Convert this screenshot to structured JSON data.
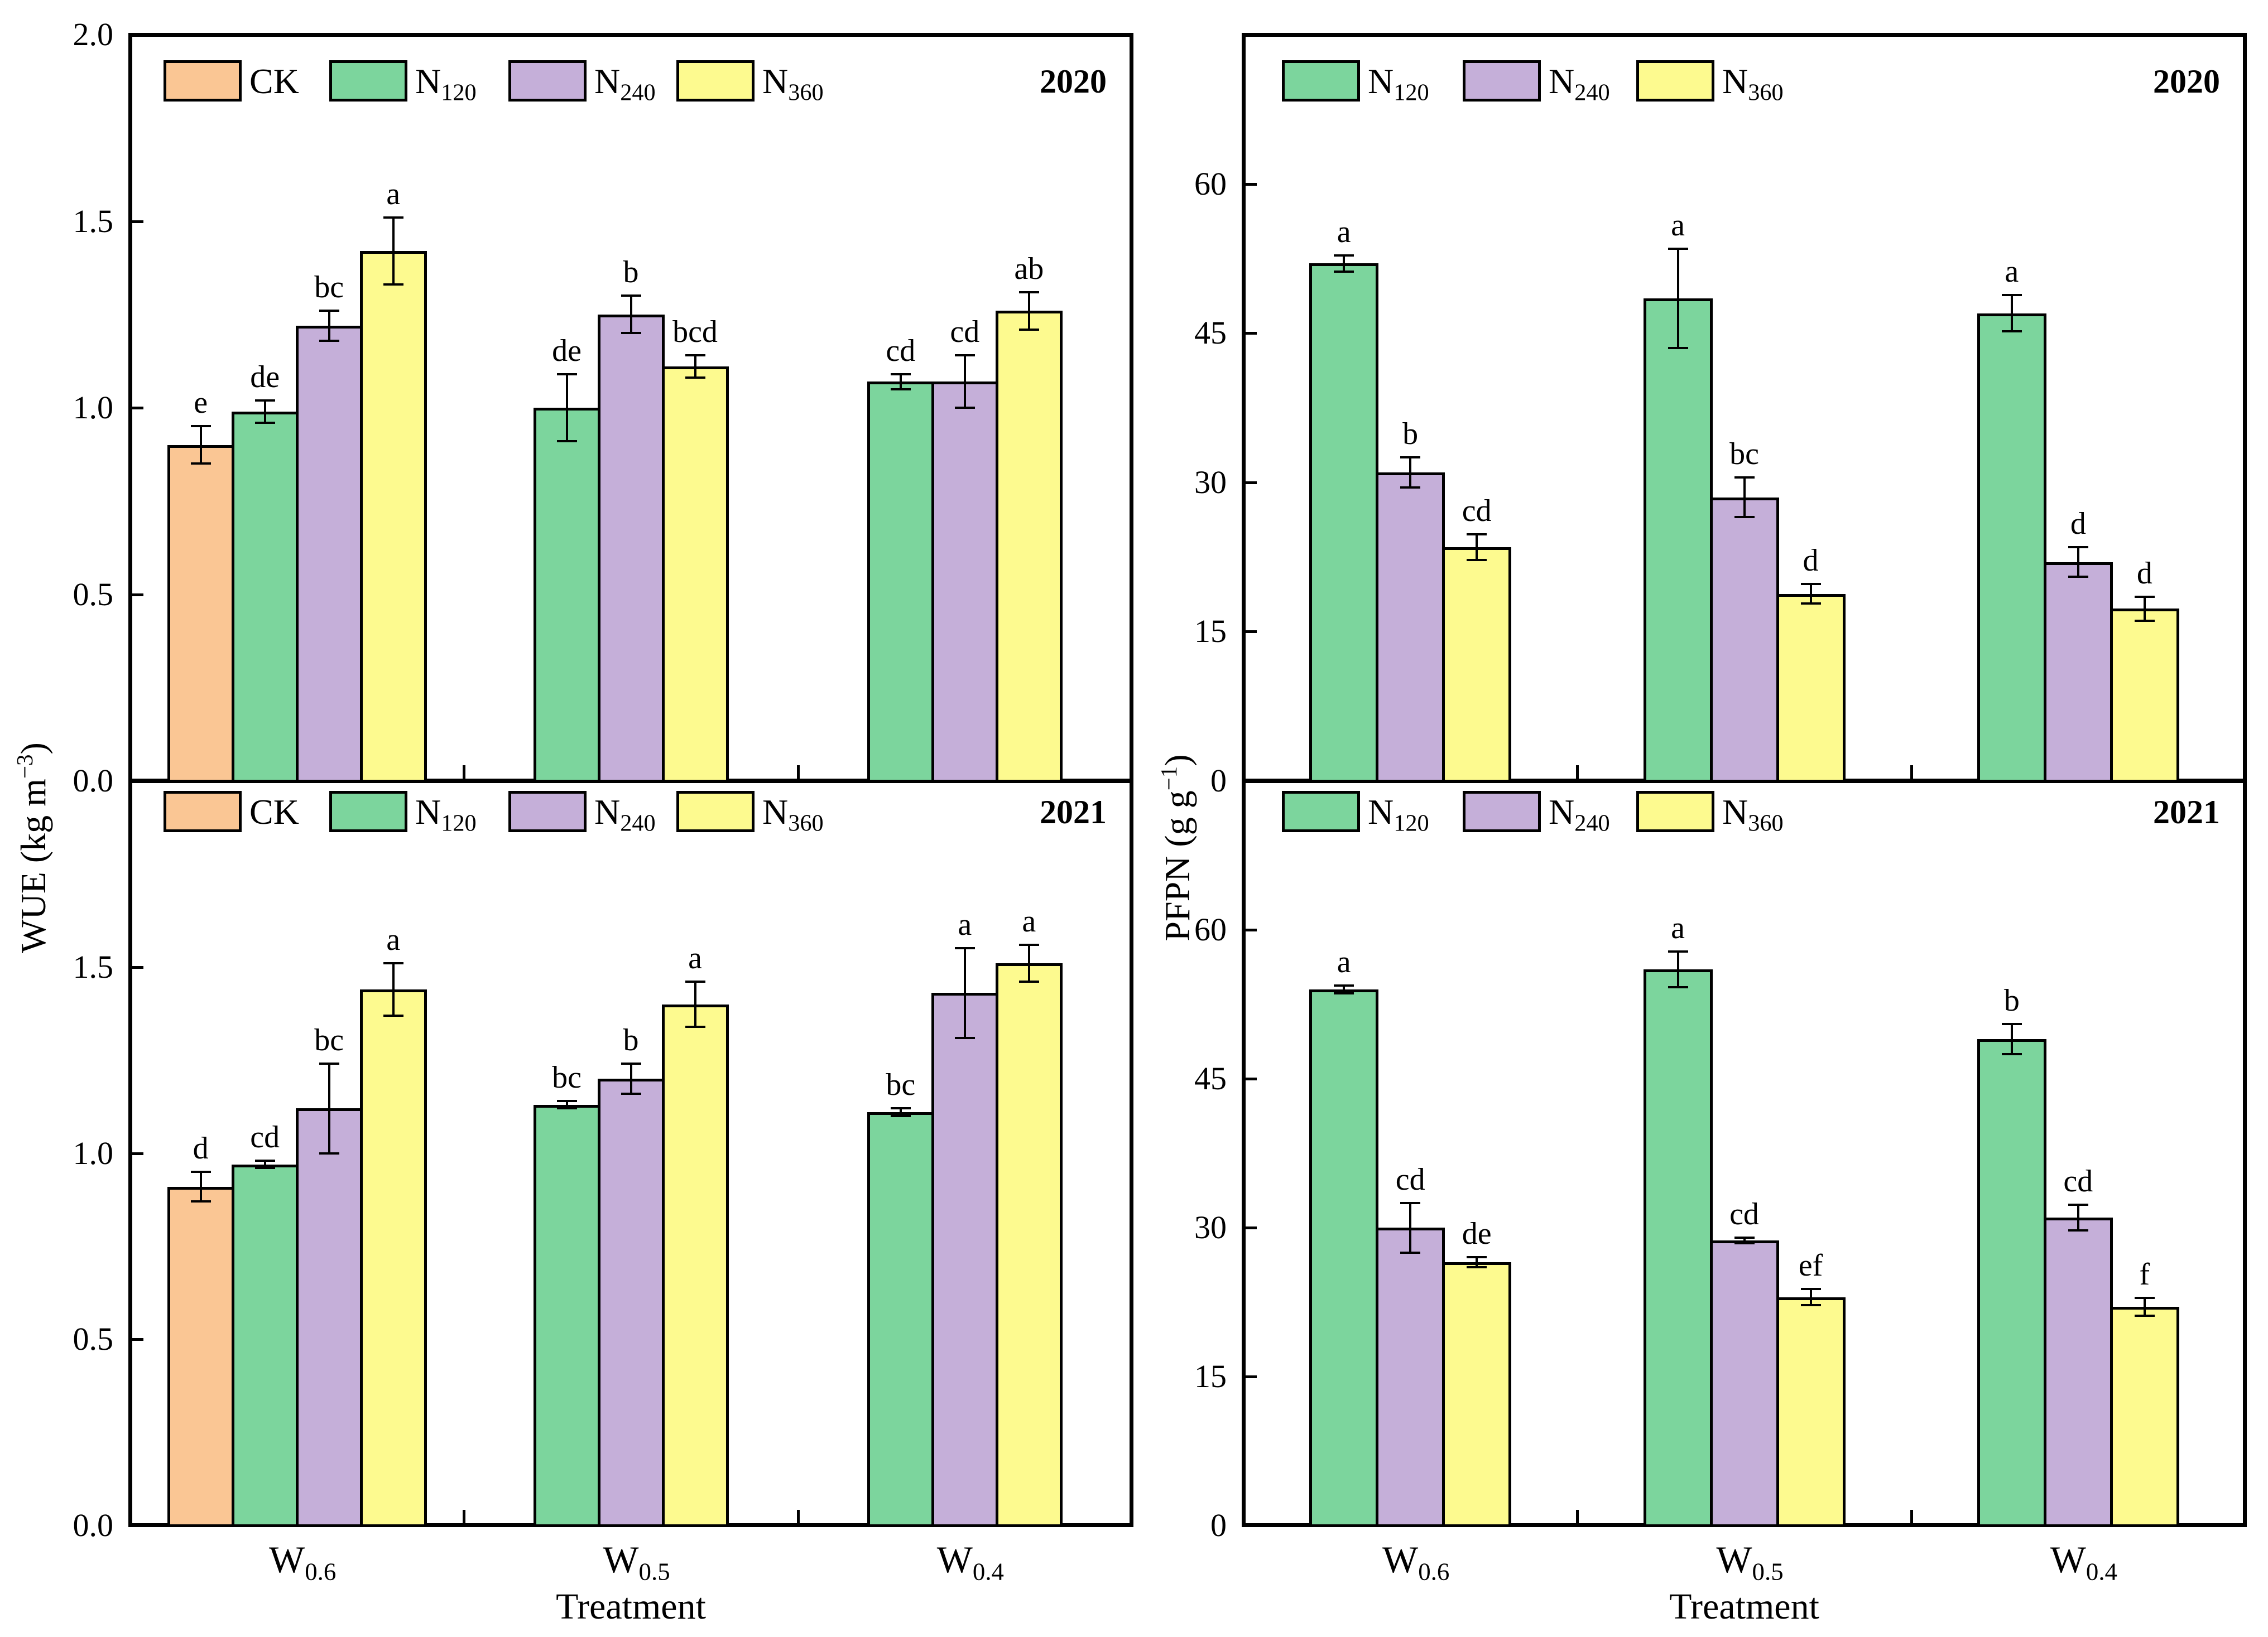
{
  "figure": {
    "x_axis_title": "Treatment",
    "background_color": "#ffffff",
    "line_color": "#000000",
    "columns": [
      {
        "y_axis_title": {
          "pre": "WUE (kg m",
          "sup": "−3",
          "post": ")"
        }
      },
      {
        "y_axis_title": {
          "pre": "PFPN (g g",
          "sup": "−1",
          "post": ")"
        }
      }
    ],
    "categories": [
      {
        "main": "W",
        "sub": "0.6"
      },
      {
        "main": "W",
        "sub": "0.5"
      },
      {
        "main": "W",
        "sub": "0.4"
      }
    ],
    "series": {
      "CK": {
        "main": "CK",
        "sub": "",
        "color": "#FAC694"
      },
      "N120": {
        "main": "N",
        "sub": "120",
        "color": "#7CD59D"
      },
      "N240": {
        "main": "N",
        "sub": "240",
        "color": "#C5AFD9"
      },
      "N360": {
        "main": "N",
        "sub": "360",
        "color": "#FDFA8F"
      }
    }
  },
  "chart_data": [
    {
      "type": "bar",
      "id": "wue-2020",
      "title": "2020",
      "column": 0,
      "row": 0,
      "ylabel": "WUE (kg m-3)",
      "ylim": [
        0,
        2.0
      ],
      "yticks": [
        {
          "v": 2.0,
          "label": "2.0"
        },
        {
          "v": 1.5,
          "label": "1.5"
        },
        {
          "v": 1.0,
          "label": "1.0"
        },
        {
          "v": 0.5,
          "label": "0.5"
        },
        {
          "v": 0.0,
          "label": "0.0"
        }
      ],
      "legend": [
        "CK",
        "N120",
        "N240",
        "N360"
      ],
      "groups": [
        {
          "category": "W0.6",
          "bars": [
            {
              "series": "CK",
              "value": 0.9,
              "err": 0.05,
              "letter": "e"
            },
            {
              "series": "N120",
              "value": 0.99,
              "err": 0.03,
              "letter": "de"
            },
            {
              "series": "N240",
              "value": 1.22,
              "err": 0.04,
              "letter": "bc"
            },
            {
              "series": "N360",
              "value": 1.42,
              "err": 0.09,
              "letter": "a"
            }
          ]
        },
        {
          "category": "W0.5",
          "bars": [
            {
              "series": "N120",
              "value": 1.0,
              "err": 0.09,
              "letter": "de"
            },
            {
              "series": "N240",
              "value": 1.25,
              "err": 0.05,
              "letter": "b"
            },
            {
              "series": "N360",
              "value": 1.11,
              "err": 0.03,
              "letter": "bcd"
            }
          ]
        },
        {
          "category": "W0.4",
          "bars": [
            {
              "series": "N120",
              "value": 1.07,
              "err": 0.02,
              "letter": "cd"
            },
            {
              "series": "N240",
              "value": 1.07,
              "err": 0.07,
              "letter": "cd"
            },
            {
              "series": "N360",
              "value": 1.26,
              "err": 0.05,
              "letter": "ab"
            }
          ]
        }
      ]
    },
    {
      "type": "bar",
      "id": "wue-2021",
      "title": "2021",
      "column": 0,
      "row": 1,
      "ylabel": "WUE (kg m-3)",
      "ylim": [
        0,
        2.0
      ],
      "yticks": [
        {
          "v": 2.0,
          "label": ""
        },
        {
          "v": 1.5,
          "label": "1.5"
        },
        {
          "v": 1.0,
          "label": "1.0"
        },
        {
          "v": 0.5,
          "label": "0.5"
        },
        {
          "v": 0.0,
          "label": "0.0"
        }
      ],
      "legend": [
        "CK",
        "N120",
        "N240",
        "N360"
      ],
      "groups": [
        {
          "category": "W0.6",
          "bars": [
            {
              "series": "CK",
              "value": 0.91,
              "err": 0.04,
              "letter": "d"
            },
            {
              "series": "N120",
              "value": 0.97,
              "err": 0.01,
              "letter": "cd"
            },
            {
              "series": "N240",
              "value": 1.12,
              "err": 0.12,
              "letter": "bc"
            },
            {
              "series": "N360",
              "value": 1.44,
              "err": 0.07,
              "letter": "a"
            }
          ]
        },
        {
          "category": "W0.5",
          "bars": [
            {
              "series": "N120",
              "value": 1.13,
              "err": 0.01,
              "letter": "bc"
            },
            {
              "series": "N240",
              "value": 1.2,
              "err": 0.04,
              "letter": "b"
            },
            {
              "series": "N360",
              "value": 1.4,
              "err": 0.06,
              "letter": "a"
            }
          ]
        },
        {
          "category": "W0.4",
          "bars": [
            {
              "series": "N120",
              "value": 1.11,
              "err": 0.01,
              "letter": "bc"
            },
            {
              "series": "N240",
              "value": 1.43,
              "err": 0.12,
              "letter": "a"
            },
            {
              "series": "N360",
              "value": 1.51,
              "err": 0.05,
              "letter": "a"
            }
          ]
        }
      ]
    },
    {
      "type": "bar",
      "id": "pfpn-2020",
      "title": "2020",
      "column": 1,
      "row": 0,
      "ylabel": "PFPN (g g-1)",
      "ylim": [
        0,
        75
      ],
      "yticks": [
        {
          "v": 75,
          "label": ""
        },
        {
          "v": 60,
          "label": "60"
        },
        {
          "v": 45,
          "label": "45"
        },
        {
          "v": 30,
          "label": "30"
        },
        {
          "v": 15,
          "label": "15"
        },
        {
          "v": 0,
          "label": "0"
        }
      ],
      "legend": [
        "N120",
        "N240",
        "N360"
      ],
      "groups": [
        {
          "category": "W0.6",
          "bars": [
            {
              "series": "N120",
              "value": 52.0,
              "err": 0.8,
              "letter": "a"
            },
            {
              "series": "N240",
              "value": 31.0,
              "err": 1.5,
              "letter": "b"
            },
            {
              "series": "N360",
              "value": 23.5,
              "err": 1.3,
              "letter": "cd"
            }
          ]
        },
        {
          "category": "W0.5",
          "bars": [
            {
              "series": "N120",
              "value": 48.5,
              "err": 5.0,
              "letter": "a"
            },
            {
              "series": "N240",
              "value": 28.5,
              "err": 2.0,
              "letter": "bc"
            },
            {
              "series": "N360",
              "value": 18.8,
              "err": 1.0,
              "letter": "d"
            }
          ]
        },
        {
          "category": "W0.4",
          "bars": [
            {
              "series": "N120",
              "value": 47.0,
              "err": 1.8,
              "letter": "a"
            },
            {
              "series": "N240",
              "value": 22.0,
              "err": 1.5,
              "letter": "d"
            },
            {
              "series": "N360",
              "value": 17.3,
              "err": 1.2,
              "letter": "d"
            }
          ]
        }
      ]
    },
    {
      "type": "bar",
      "id": "pfpn-2021",
      "title": "2021",
      "column": 1,
      "row": 1,
      "ylabel": "PFPN (g g-1)",
      "ylim": [
        0,
        75
      ],
      "yticks": [
        {
          "v": 75,
          "label": ""
        },
        {
          "v": 60,
          "label": "60"
        },
        {
          "v": 45,
          "label": "45"
        },
        {
          "v": 30,
          "label": "30"
        },
        {
          "v": 15,
          "label": "15"
        },
        {
          "v": 0,
          "label": "0"
        }
      ],
      "legend": [
        "N120",
        "N240",
        "N360"
      ],
      "groups": [
        {
          "category": "W0.6",
          "bars": [
            {
              "series": "N120",
              "value": 54.0,
              "err": 0.4,
              "letter": "a"
            },
            {
              "series": "N240",
              "value": 30.0,
              "err": 2.5,
              "letter": "cd"
            },
            {
              "series": "N360",
              "value": 26.5,
              "err": 0.5,
              "letter": "de"
            }
          ]
        },
        {
          "category": "W0.5",
          "bars": [
            {
              "series": "N120",
              "value": 56.0,
              "err": 1.8,
              "letter": "a"
            },
            {
              "series": "N240",
              "value": 28.7,
              "err": 0.3,
              "letter": "cd"
            },
            {
              "series": "N360",
              "value": 23.0,
              "err": 0.8,
              "letter": "ef"
            }
          ]
        },
        {
          "category": "W0.4",
          "bars": [
            {
              "series": "N120",
              "value": 49.0,
              "err": 1.5,
              "letter": "b"
            },
            {
              "series": "N240",
              "value": 31.0,
              "err": 1.3,
              "letter": "cd"
            },
            {
              "series": "N360",
              "value": 22.0,
              "err": 0.9,
              "letter": "f"
            }
          ]
        }
      ]
    }
  ]
}
